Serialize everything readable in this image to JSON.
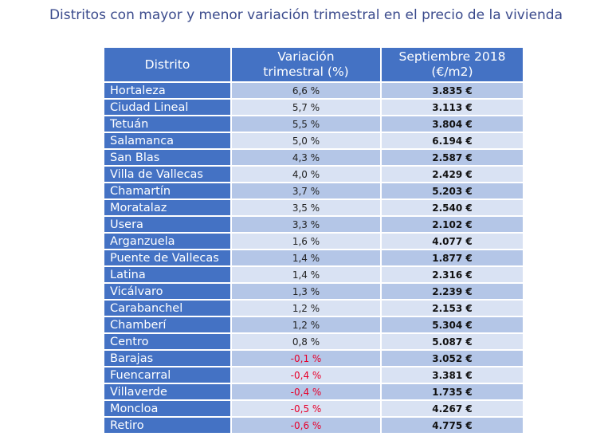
{
  "title": "Distritos con mayor y menor variación trimestral en el precio de la vivienda",
  "table": {
    "headers": {
      "distrito": "Distrito",
      "variacion_line1": "Variación",
      "variacion_line2": "trimestral (%)",
      "precio_line1": "Septiembre 2018",
      "precio_line2": "(€/m2)"
    },
    "rows": [
      {
        "distrito": "Hortaleza",
        "variacion": "6,6 %",
        "precio": "3.835 €",
        "negative": false
      },
      {
        "distrito": "Ciudad Lineal",
        "variacion": "5,7 %",
        "precio": "3.113 €",
        "negative": false
      },
      {
        "distrito": "Tetuán",
        "variacion": "5,5 %",
        "precio": "3.804 €",
        "negative": false
      },
      {
        "distrito": "Salamanca",
        "variacion": "5,0 %",
        "precio": "6.194 €",
        "negative": false
      },
      {
        "distrito": "San Blas",
        "variacion": "4,3 %",
        "precio": "2.587 €",
        "negative": false
      },
      {
        "distrito": "Villa de Vallecas",
        "variacion": "4,0 %",
        "precio": "2.429 €",
        "negative": false
      },
      {
        "distrito": "Chamartín",
        "variacion": "3,7 %",
        "precio": "5.203 €",
        "negative": false
      },
      {
        "distrito": "Moratalaz",
        "variacion": "3,5 %",
        "precio": "2.540 €",
        "negative": false
      },
      {
        "distrito": "Usera",
        "variacion": "3,3 %",
        "precio": "2.102 €",
        "negative": false
      },
      {
        "distrito": "Arganzuela",
        "variacion": "1,6 %",
        "precio": "4.077 €",
        "negative": false
      },
      {
        "distrito": "Puente de Vallecas",
        "variacion": "1,4 %",
        "precio": "1.877 €",
        "negative": false
      },
      {
        "distrito": "Latina",
        "variacion": "1,4 %",
        "precio": "2.316 €",
        "negative": false
      },
      {
        "distrito": "Vicálvaro",
        "variacion": "1,3 %",
        "precio": "2.239 €",
        "negative": false
      },
      {
        "distrito": "Carabanchel",
        "variacion": "1,2 %",
        "precio": "2.153 €",
        "negative": false
      },
      {
        "distrito": "Chamberí",
        "variacion": "1,2 %",
        "precio": "5.304 €",
        "negative": false
      },
      {
        "distrito": "Centro",
        "variacion": "0,8 %",
        "precio": "5.087 €",
        "negative": false
      },
      {
        "distrito": "Barajas",
        "variacion": "-0,1 %",
        "precio": "3.052 €",
        "negative": true
      },
      {
        "distrito": "Fuencarral",
        "variacion": "-0,4 %",
        "precio": "3.381 €",
        "negative": true
      },
      {
        "distrito": "Villaverde",
        "variacion": "-0,4 %",
        "precio": "1.735 €",
        "negative": true
      },
      {
        "distrito": "Moncloa",
        "variacion": "-0,5 %",
        "precio": "4.267 €",
        "negative": true
      },
      {
        "distrito": "Retiro",
        "variacion": "-0,6 %",
        "precio": "4.775 €",
        "negative": true
      }
    ]
  },
  "colors": {
    "title": "#3a4a8c",
    "header_bg": "#4472c4",
    "row_odd": "#b4c6e7",
    "row_even": "#d9e2f3",
    "negative": "#e8002a"
  }
}
